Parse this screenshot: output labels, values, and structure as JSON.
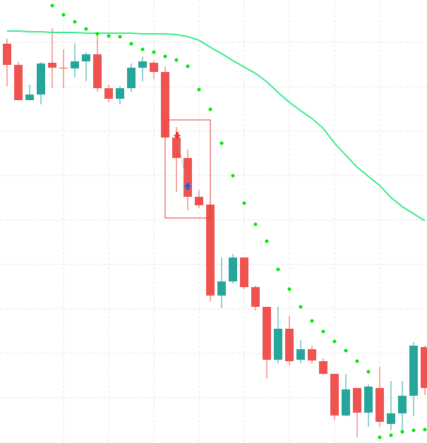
{
  "chart_data": {
    "type": "candlestick",
    "open": [
      566,
      536,
      486,
      494,
      539,
      532,
      531,
      541,
      551,
      503,
      488,
      503,
      532,
      539,
      526,
      433,
      404,
      349,
      338,
      209,
      229,
      263,
      221,
      193,
      118,
      162,
      118,
      133,
      116,
      98,
      39,
      78,
      43,
      78,
      27,
      42,
      67,
      136
    ],
    "high": [
      573,
      540,
      508,
      540,
      588,
      558,
      566,
      554,
      578,
      508,
      506,
      538,
      548,
      542,
      533,
      448,
      416,
      358,
      338,
      263,
      268,
      263,
      223,
      193,
      193,
      180,
      146,
      138,
      120,
      98,
      98,
      78,
      83,
      108,
      88,
      88,
      143,
      138
    ],
    "low": [
      506,
      486,
      486,
      480,
      503,
      503,
      518,
      513,
      498,
      483,
      480,
      498,
      513,
      516,
      433,
      356,
      330,
      333,
      201,
      191,
      226,
      218,
      188,
      91,
      113,
      110,
      113,
      113,
      96,
      33,
      38,
      8,
      23,
      23,
      18,
      13,
      38,
      68
    ],
    "close": [
      536,
      486,
      494,
      538,
      532,
      531,
      541,
      551,
      503,
      488,
      503,
      532,
      541,
      526,
      433,
      404,
      349,
      337,
      209,
      229,
      263,
      221,
      193,
      118,
      162,
      116,
      133,
      117,
      98,
      39,
      76,
      43,
      80,
      30,
      42,
      67,
      138,
      78
    ],
    "up_color": "#26a69a",
    "down_color": "#ef5350",
    "ylim": [
      0,
      628
    ],
    "series": [
      {
        "type": "line",
        "color": "#3bea8c",
        "values": [
          584,
          584,
          583,
          583,
          582,
          582,
          582,
          581,
          581,
          581,
          581,
          581,
          580,
          580,
          580,
          579,
          576,
          571,
          561,
          552,
          542,
          533,
          524,
          512,
          497,
          483,
          471,
          460,
          446,
          425,
          408,
          391,
          378,
          365,
          348,
          335,
          325,
          315
        ]
      },
      {
        "type": "scatter",
        "color": "#00e600",
        "values": [
          null,
          null,
          null,
          null,
          620,
          607,
          597,
          587,
          580,
          577,
          576,
          566,
          558,
          554,
          548,
          543,
          534,
          501,
          473,
          425,
          379,
          340,
          310,
          286,
          246,
          218,
          193,
          173,
          158,
          144,
          131,
          116,
          101,
          8,
          11,
          16,
          18,
          19
        ]
      }
    ]
  }
}
